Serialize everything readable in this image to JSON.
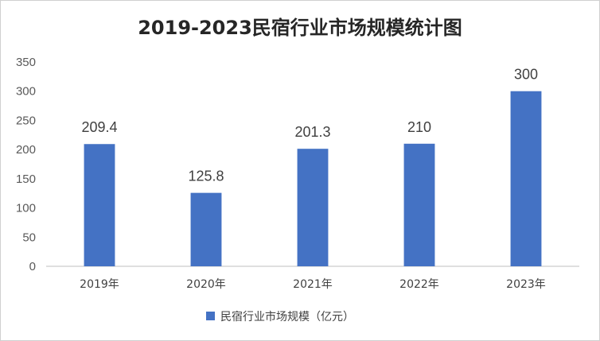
{
  "chart_data": {
    "type": "bar",
    "title": "2019-2023民宿行业市场规模统计图",
    "categories": [
      "2019年",
      "2020年",
      "2021年",
      "2022年",
      "2023年"
    ],
    "series": [
      {
        "name": "民宿行业市场规模（亿元）",
        "values": [
          209.4,
          125.8,
          201.3,
          210,
          300
        ],
        "data_labels": [
          "209.4",
          "125.8",
          "201.3",
          "210",
          "300"
        ],
        "color": "#4472c4"
      }
    ],
    "y_ticks": [
      "0",
      "50",
      "100",
      "150",
      "200",
      "250",
      "300",
      "350"
    ],
    "ylim": [
      0,
      350
    ],
    "xlabel": "",
    "ylabel": "",
    "grid": false,
    "legend_position": "bottom"
  }
}
